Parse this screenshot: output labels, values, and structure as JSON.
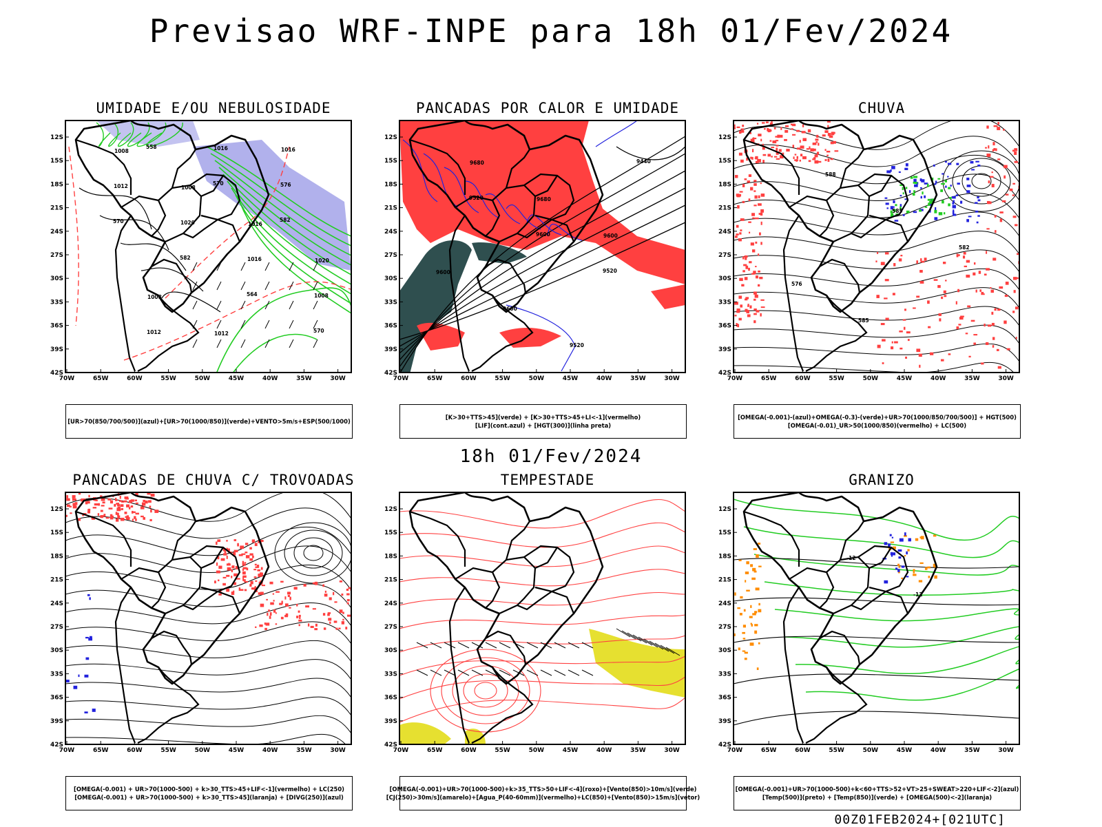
{
  "title": "Previsao WRF-INPE  para 18h 01/Fev/2024",
  "mid_date": "18h 01/Fev/2024",
  "footer": "00Z01FEB2024+[021UTC]",
  "axes": {
    "lat_labels": [
      "12S",
      "15S",
      "18S",
      "21S",
      "24S",
      "27S",
      "30S",
      "33S",
      "36S",
      "39S",
      "42S"
    ],
    "lon_labels": [
      "70W",
      "65W",
      "60W",
      "55W",
      "50W",
      "45W",
      "40W",
      "35W",
      "30W"
    ]
  },
  "colors": {
    "humidity_blue": "#a9a9ea",
    "green": "#22cc22",
    "red": "#ff4040",
    "dark_teal": "#2f4f4f",
    "blue": "#2222dd",
    "yellow": "#e6e030",
    "orange": "#ff8c00"
  },
  "panels": [
    {
      "title": "UMIDADE E/OU NEBULOSIDADE",
      "legend": [
        "[UR>70(850/700/500)](azul)+[UR>70(1000/850)](verde)+VENTO>5m/s+ESP(500/1000)"
      ],
      "contour_labels": [
        "1008",
        "1008",
        "1016",
        "1020",
        "1008",
        "1012",
        "1016",
        "1012",
        "1020",
        "1016",
        "1008",
        "1012",
        "1016",
        "576",
        "570",
        "582",
        "564",
        "570",
        "558",
        "570",
        "582"
      ]
    },
    {
      "title": "PANCADAS POR CALOR E UMIDADE",
      "legend": [
        "[K>30+TTS>45](verde) + [K>30+TTS>45+LI<-1](vermelho)",
        "[LIF](cont.azul) + [HGT(300)](linha preta)"
      ],
      "contour_labels": [
        "9680",
        "9680",
        "9600",
        "9600",
        "9600",
        "9520",
        "9440",
        "9520",
        "9600",
        "9520"
      ]
    },
    {
      "title": "CHUVA",
      "legend": [
        "[OMEGA(-0.001)-(azul)+OMEGA(-0.3)-(verde)+UR>70(1000/850/700/500)] + HGT(500)",
        "[OMEGA(-0.01)_UR>50(1000/850)(vermelho) + LC(500)"
      ],
      "contour_labels": [
        "588",
        "585",
        "582",
        "576",
        "585"
      ]
    },
    {
      "title": "PANCADAS DE CHUVA C/ TROVOADAS",
      "legend": [
        "[OMEGA(-0.001) + UR>70(1000-500) + k>30_TTS>45+LIF<-1](vermelho) + LC(250)",
        "[OMEGA(-0.001) + UR>70(1000-500) + k>30_TTS>45](laranja) + [DIVG(250)](azul)"
      ],
      "contour_labels": []
    },
    {
      "title": "TEMPESTADE",
      "legend": [
        "[OMEGA(-0.001)+UR>70(1000-500)+k>35_TTS>50+LIF<-4](roxo)+[Vento(850)>10m/s](verde)",
        "[CJ(250)>30m/s](amarelo)+[Agua_P(40-60mm)](vermelho)+LC(850)+[Vento(850)>15m/s](vetor)"
      ],
      "contour_labels": []
    },
    {
      "title": "GRANIZO",
      "legend": [
        "[OMEGA(-0.001)+UR>70(1000-500)+k<60+TTS>52+VT>25+SWEAT>220+LIF<-2](azul)",
        "[Temp(500)](preto) + [Temp(850)](verde) + [OMEGA(500)<-2](laranja)"
      ],
      "contour_labels": [
        "-12",
        "-12"
      ]
    }
  ]
}
